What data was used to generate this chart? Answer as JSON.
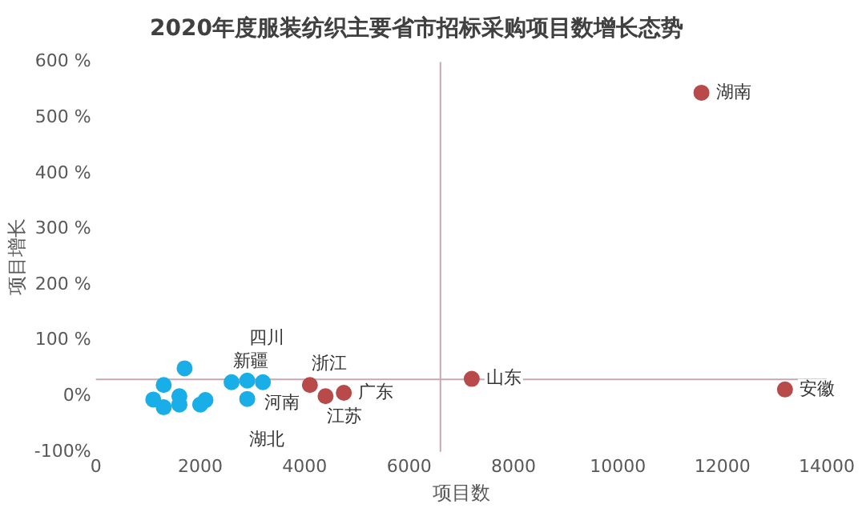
{
  "chart_data": {
    "type": "scatter",
    "title": "2020年度服装纺织主要省市招标采购项目数增长态势",
    "xlabel": "项目数",
    "ylabel": "项目增长",
    "series": [
      {
        "color": "#1aaee8",
        "x": [
          1100,
          1300,
          1300,
          1700,
          1600,
          1600,
          2000,
          2100,
          2600,
          2900,
          3200,
          2900
        ],
        "values": [
          -6,
          -20,
          20,
          50,
          0,
          -15,
          -15,
          -7,
          25,
          28,
          25,
          -5
        ]
      },
      {
        "color": "#b84a4a",
        "x": [
          4100,
          4400,
          4750,
          7200,
          11600,
          13200
        ],
        "values": [
          20,
          0,
          6,
          31,
          545,
          12
        ]
      }
    ],
    "xlim": [
      0,
      14000
    ],
    "xticks": [
      0,
      2000,
      4000,
      6000,
      8000,
      10000,
      12000,
      14000
    ],
    "ylim": [
      -100,
      600
    ],
    "yticks": [
      {
        "value": -100,
        "label": "-100%"
      },
      {
        "value": 0,
        "label": "0%"
      },
      {
        "value": 100,
        "label": "100 %"
      },
      {
        "value": 200,
        "label": "200 %"
      },
      {
        "value": 300,
        "label": "300 %"
      },
      {
        "value": 400,
        "label": "400 %"
      },
      {
        "value": 500,
        "label": "500 %"
      },
      {
        "value": 600,
        "label": "600 %"
      }
    ],
    "ref_lines": [
      {
        "axis": "y",
        "value": 30,
        "color": "#c8a8b0"
      },
      {
        "axis": "x",
        "value": 6600,
        "color": "#c8a8b0"
      }
    ],
    "annotations": [
      {
        "text": "新疆",
        "x": 2600,
        "y": 25
      },
      {
        "text": "四川",
        "x": 2900,
        "y": 28
      },
      {
        "text": "河南",
        "x": 3200,
        "y": 25
      },
      {
        "text": "湖北",
        "x": 2900,
        "y": -5
      },
      {
        "text": "浙江",
        "x": 4100,
        "y": 20
      },
      {
        "text": "江苏",
        "x": 4400,
        "y": 0
      },
      {
        "text": "广东",
        "x": 4750,
        "y": 6
      },
      {
        "text": "山东",
        "x": 7200,
        "y": 31
      },
      {
        "text": "湖南",
        "x": 11600,
        "y": 545
      },
      {
        "text": "安徽",
        "x": 13200,
        "y": 12
      }
    ],
    "grid": false,
    "legend": false,
    "marker": "circle"
  }
}
